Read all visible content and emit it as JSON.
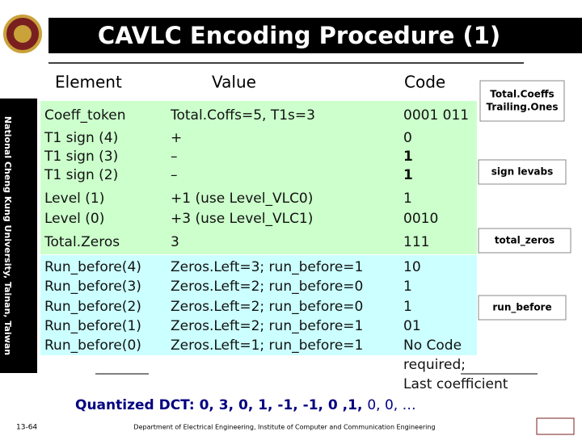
{
  "header": {
    "title": "CAVLC Encoding Procedure (1)"
  },
  "sidebar": "National Cheng Kung University, Tainan, Taiwan",
  "table": {
    "headers": [
      "Element",
      "Value",
      "Code"
    ],
    "rows": [
      [
        "Coeff_token",
        "Total.Coffs=5, T1s=3",
        "0001 011"
      ],
      [
        "T1 sign (4)",
        "+",
        "0"
      ],
      [
        "T1 sign (3)",
        "–",
        "1"
      ],
      [
        "T1 sign (2)",
        "–",
        "1"
      ],
      [
        "Level (1)",
        "+1 (use Level_VLC0)",
        "1"
      ],
      [
        "Level (0)",
        "+3 (use Level_VLC1)",
        "0010"
      ],
      [
        "Total.Zeros",
        "3",
        "111"
      ],
      [
        "Run_before(4)",
        "Zeros.Left=3; run_before=1",
        "10"
      ],
      [
        "Run_before(3)",
        "Zeros.Left=2; run_before=0",
        "1"
      ],
      [
        "Run_before(2)",
        "Zeros.Left=2; run_before=0",
        "1"
      ],
      [
        "Run_before(1)",
        "Zeros.Left=2; run_before=1",
        "01"
      ],
      [
        "Run_before(0)",
        "Zeros.Left=1; run_before=1",
        "No Code required; Last coefficient"
      ]
    ]
  },
  "side_labels": [
    [
      "Total.Coeffs",
      "Trailing.Ones"
    ],
    [
      "sign levabs"
    ],
    [
      "total_zeros"
    ],
    [
      "run_before"
    ]
  ],
  "sequence": {
    "label": "Quantized DCT:",
    "bold": "0, 3, 0, 1, -1, -1, 0 ,1,",
    "rest": "0, 0, …"
  },
  "footer": {
    "page": "13-64",
    "department": "Department of Electrical Engineering, Institute of Computer and Communication Engineering"
  }
}
